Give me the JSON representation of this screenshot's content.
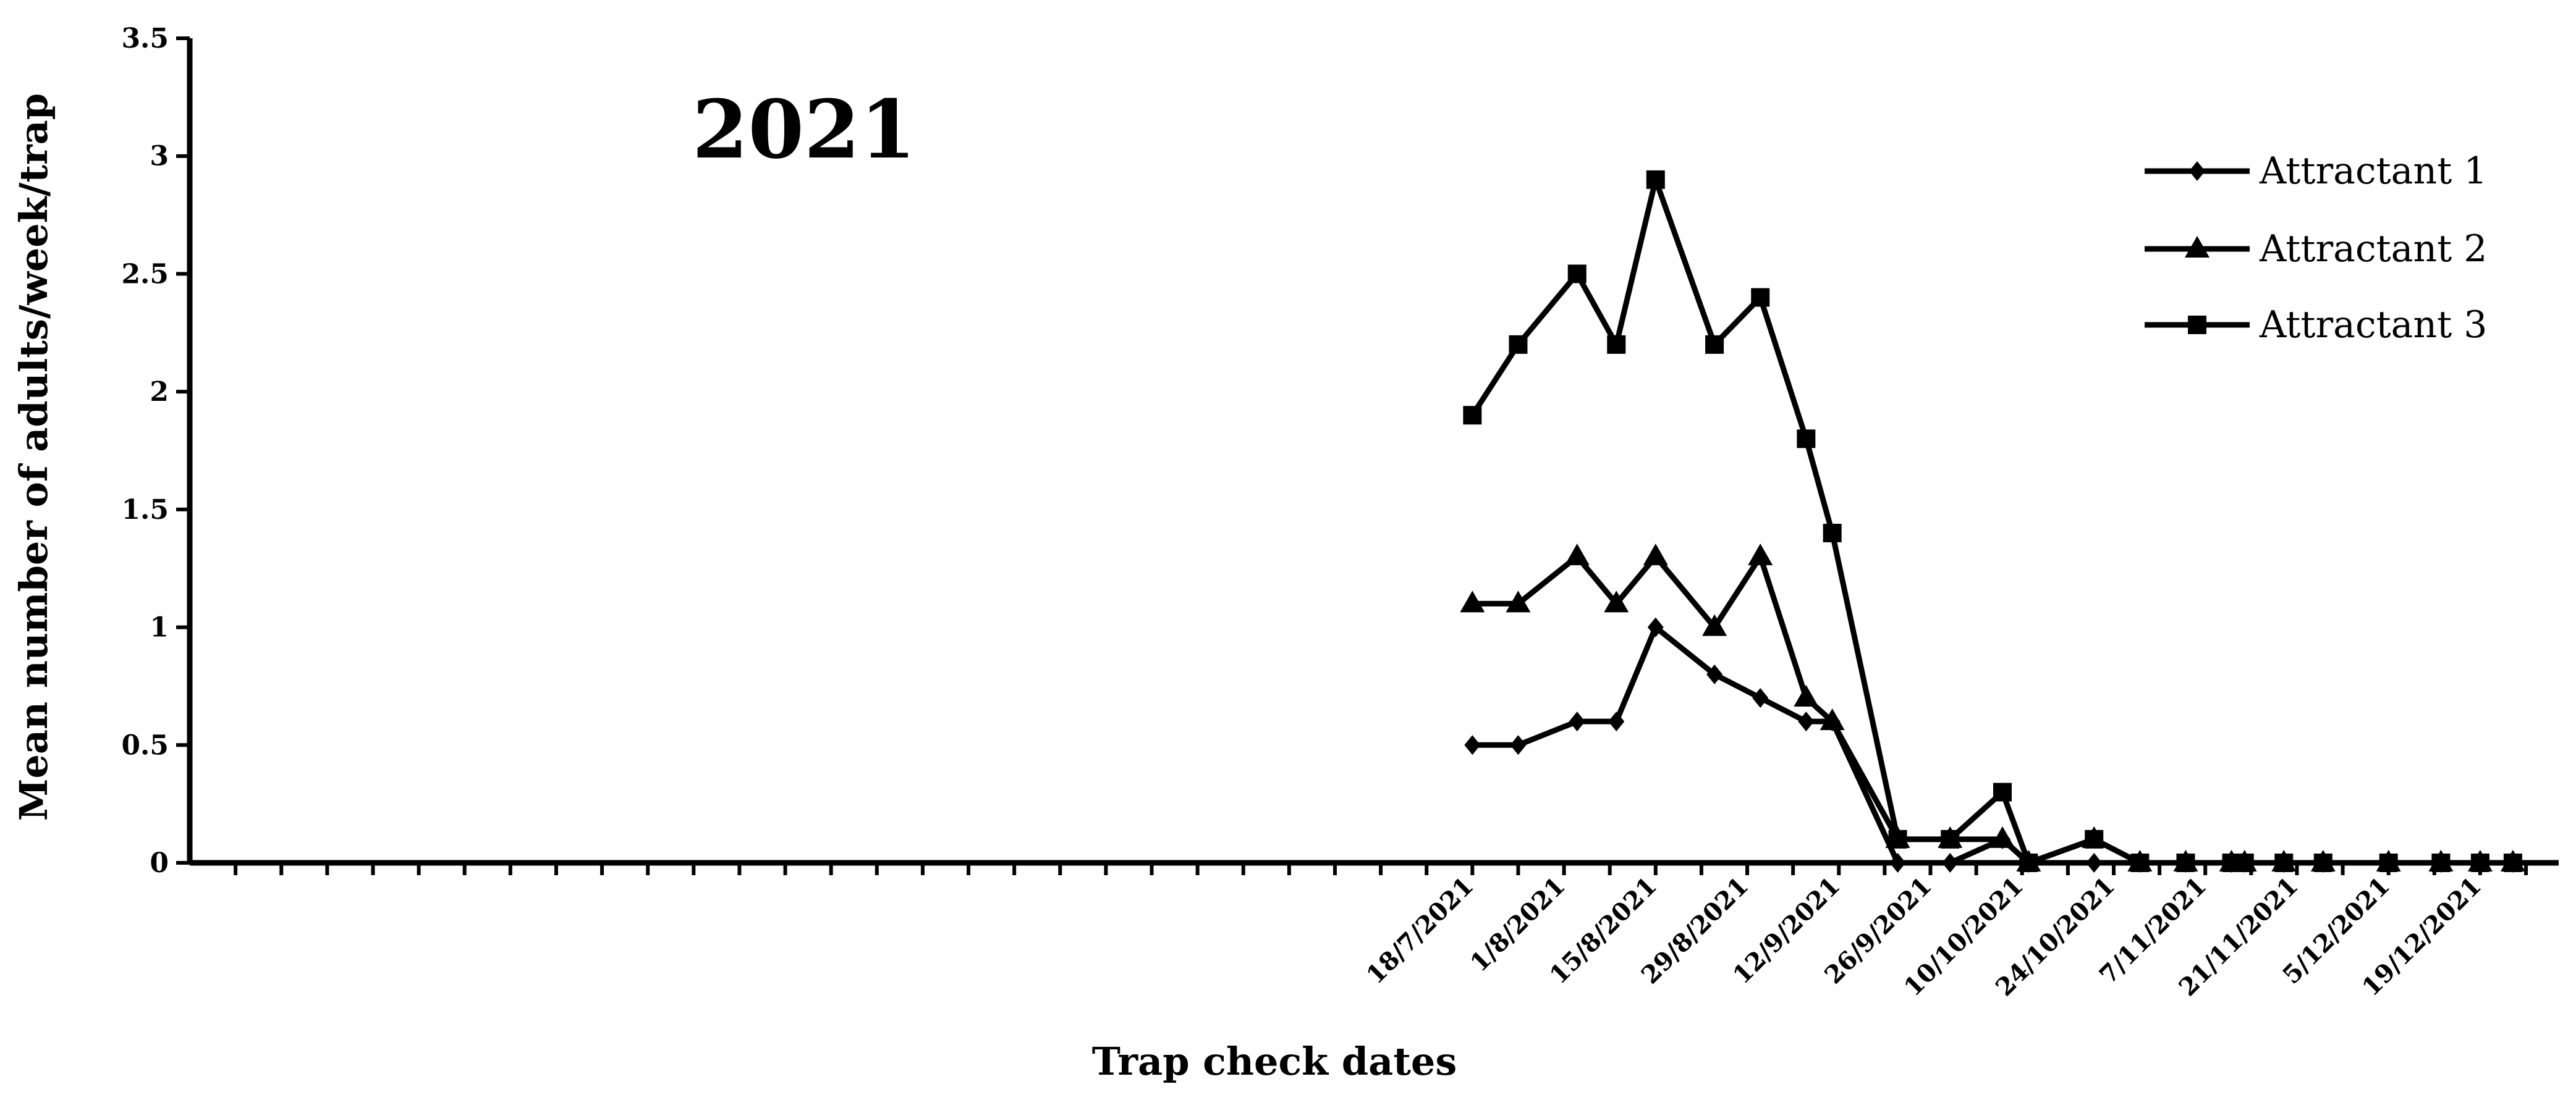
{
  "chart_data": {
    "type": "line",
    "annotation": "2021",
    "xlabel": "Trap check dates",
    "ylabel": "Mean number of adults/week/trap",
    "ylim": [
      0,
      3.5
    ],
    "yticks": [
      "0",
      "0.5",
      "1",
      "1.5",
      "2",
      "2.5",
      "3",
      "3.5"
    ],
    "xlim": [
      "2021-01-03",
      "2021-12-31"
    ],
    "xtick_labels": [
      "18/7/2021",
      "1/8/2021",
      "15/8/2021",
      "29/8/2021",
      "12/9/2021",
      "26/9/2021",
      "10/10/2021",
      "24/10/2021",
      "7/11/2021",
      "21/11/2021",
      "5/12/2021",
      "19/12/2021"
    ],
    "xtick_dates": [
      "2021-07-18",
      "2021-08-01",
      "2021-08-15",
      "2021-08-29",
      "2021-09-12",
      "2021-09-26",
      "2021-10-10",
      "2021-10-24",
      "2021-11-07",
      "2021-11-21",
      "2021-12-05",
      "2021-12-19"
    ],
    "legend_position": "top-right",
    "grid": false,
    "color": "#000000",
    "series": [
      {
        "name": "Attractant 1",
        "marker": "diamond",
        "x": [
          "2021-07-18",
          "2021-07-25",
          "2021-08-03",
          "2021-08-09",
          "2021-08-15",
          "2021-08-24",
          "2021-08-31",
          "2021-09-07",
          "2021-09-11",
          "2021-09-21",
          "2021-09-29",
          "2021-10-07",
          "2021-10-11",
          "2021-10-21",
          "2021-10-28",
          "2021-11-04",
          "2021-11-11",
          "2021-11-13",
          "2021-11-19",
          "2021-11-25",
          "2021-12-05",
          "2021-12-13",
          "2021-12-19",
          "2021-12-24"
        ],
        "y": [
          0.5,
          0.5,
          0.6,
          0.6,
          1.0,
          0.8,
          0.7,
          0.6,
          0.6,
          0,
          0,
          0.1,
          0,
          0,
          0,
          0,
          0,
          0,
          0,
          0,
          0,
          0,
          0,
          0
        ]
      },
      {
        "name": "Attractant 2",
        "marker": "triangle",
        "x": [
          "2021-07-18",
          "2021-07-25",
          "2021-08-03",
          "2021-08-09",
          "2021-08-15",
          "2021-08-24",
          "2021-08-31",
          "2021-09-07",
          "2021-09-11",
          "2021-09-21",
          "2021-09-29",
          "2021-10-07",
          "2021-10-11",
          "2021-10-21",
          "2021-10-28",
          "2021-11-04",
          "2021-11-11",
          "2021-11-13",
          "2021-11-19",
          "2021-11-25",
          "2021-12-05",
          "2021-12-13",
          "2021-12-19",
          "2021-12-24"
        ],
        "y": [
          1.1,
          1.1,
          1.3,
          1.1,
          1.3,
          1.0,
          1.3,
          0.7,
          0.6,
          0.1,
          0.1,
          0.1,
          0,
          0.1,
          0,
          0,
          0,
          0,
          0,
          0,
          0,
          0,
          0,
          0
        ]
      },
      {
        "name": "Attractant 3",
        "marker": "square",
        "x": [
          "2021-07-18",
          "2021-07-25",
          "2021-08-03",
          "2021-08-09",
          "2021-08-15",
          "2021-08-24",
          "2021-08-31",
          "2021-09-07",
          "2021-09-11",
          "2021-09-21",
          "2021-09-29",
          "2021-10-07",
          "2021-10-11",
          "2021-10-21",
          "2021-10-28",
          "2021-11-04",
          "2021-11-11",
          "2021-11-13",
          "2021-11-19",
          "2021-11-25",
          "2021-12-05",
          "2021-12-13",
          "2021-12-19",
          "2021-12-24"
        ],
        "y": [
          1.9,
          2.2,
          2.5,
          2.2,
          2.9,
          2.2,
          2.4,
          1.8,
          1.4,
          0.1,
          0.1,
          0.3,
          0,
          0.1,
          0,
          0,
          0,
          0,
          0,
          0,
          0,
          0,
          0,
          0
        ]
      }
    ]
  }
}
